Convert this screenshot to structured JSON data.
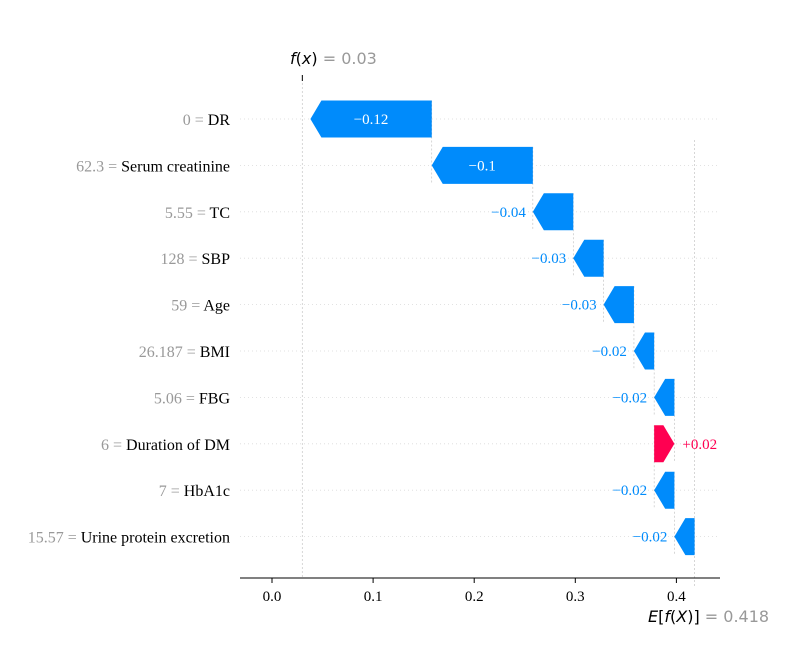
{
  "chart_data": {
    "type": "waterfall",
    "base_value": 0.418,
    "output_value": 0.03,
    "xlim": [
      -0.035,
      0.47
    ],
    "xticks": [
      0.0,
      0.1,
      0.2,
      0.3,
      0.4
    ],
    "tick_labels": [
      "0.0",
      "0.1",
      "0.2",
      "0.3",
      "0.4"
    ],
    "fx_label": "f(x) = 0.03",
    "fx_parts": {
      "f": "f",
      "open": "(",
      "x": "x",
      "close": ")",
      "eq": " = ",
      "val": "0.03"
    },
    "ex_parts": {
      "E": "E",
      "open": "[",
      "f": "f",
      "open2": "(",
      "X": "X",
      "close2": ")",
      "close": "]",
      "eq": " = ",
      "val": "0.418"
    },
    "features": [
      {
        "value": "0",
        "name": "DR",
        "shap": -0.12,
        "label": "−0.12"
      },
      {
        "value": "62.3",
        "name": "Serum creatinine",
        "shap": -0.1,
        "label": "−0.1"
      },
      {
        "value": "5.55",
        "name": "TC",
        "shap": -0.04,
        "label": "−0.04"
      },
      {
        "value": "128",
        "name": "SBP",
        "shap": -0.03,
        "label": "−0.03"
      },
      {
        "value": "59",
        "name": "Age",
        "shap": -0.03,
        "label": "−0.03"
      },
      {
        "value": "26.187",
        "name": "BMI",
        "shap": -0.02,
        "label": "−0.02"
      },
      {
        "value": "5.06",
        "name": "FBG",
        "shap": -0.02,
        "label": "−0.02"
      },
      {
        "value": "6",
        "name": "Duration of DM",
        "shap": 0.02,
        "label": "+0.02"
      },
      {
        "value": "7",
        "name": "HbA1c",
        "shap": -0.02,
        "label": "−0.02"
      },
      {
        "value": "15.57",
        "name": "Urine protein excretion",
        "shap": -0.02,
        "label": "−0.02"
      }
    ],
    "colors": {
      "negative": "#008bfb",
      "positive": "#ff0051",
      "muted": "#999999",
      "grid": "#cccccc"
    }
  }
}
